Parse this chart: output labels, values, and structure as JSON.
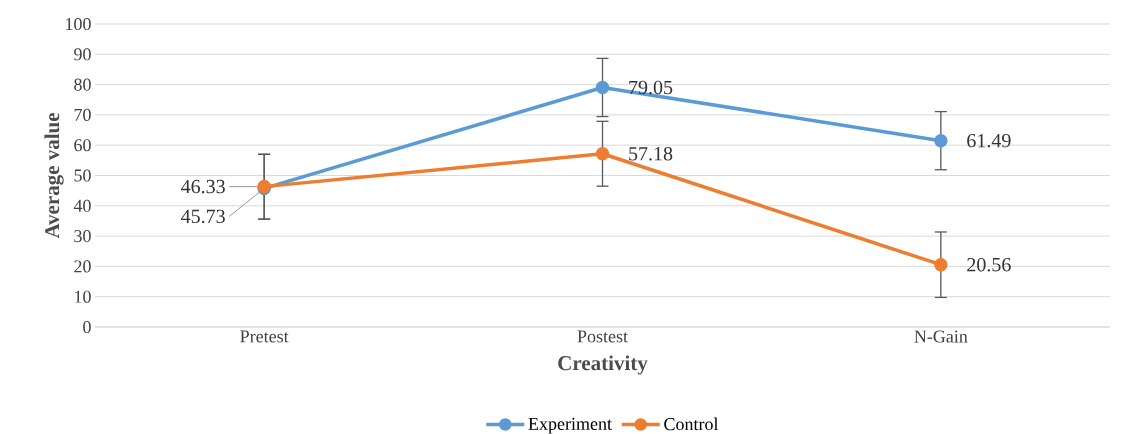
{
  "chart_data": {
    "type": "line",
    "xlabel": "Creativity",
    "ylabel": "Average value",
    "categories": [
      "Pretest",
      "Postest",
      "N-Gain"
    ],
    "series": [
      {
        "name": "Experiment",
        "color": "#5b9bd5",
        "values": [
          45.73,
          79.05,
          61.49
        ],
        "errors": [
          [
            35.6,
            57.0
          ],
          9.6,
          9.6
        ]
      },
      {
        "name": "Control",
        "color": "#ed7d31",
        "values": [
          46.33,
          57.18,
          20.56
        ],
        "errors": [
          [
            35.6,
            57.0
          ],
          10.7,
          10.8
        ]
      }
    ],
    "ylim": [
      0,
      100
    ],
    "yticks": [
      0,
      10,
      20,
      30,
      40,
      50,
      60,
      70,
      80,
      90,
      100
    ],
    "grid": "y",
    "legend": "bottom",
    "marker": "circle",
    "line_style": "solid",
    "data_labels": true
  }
}
